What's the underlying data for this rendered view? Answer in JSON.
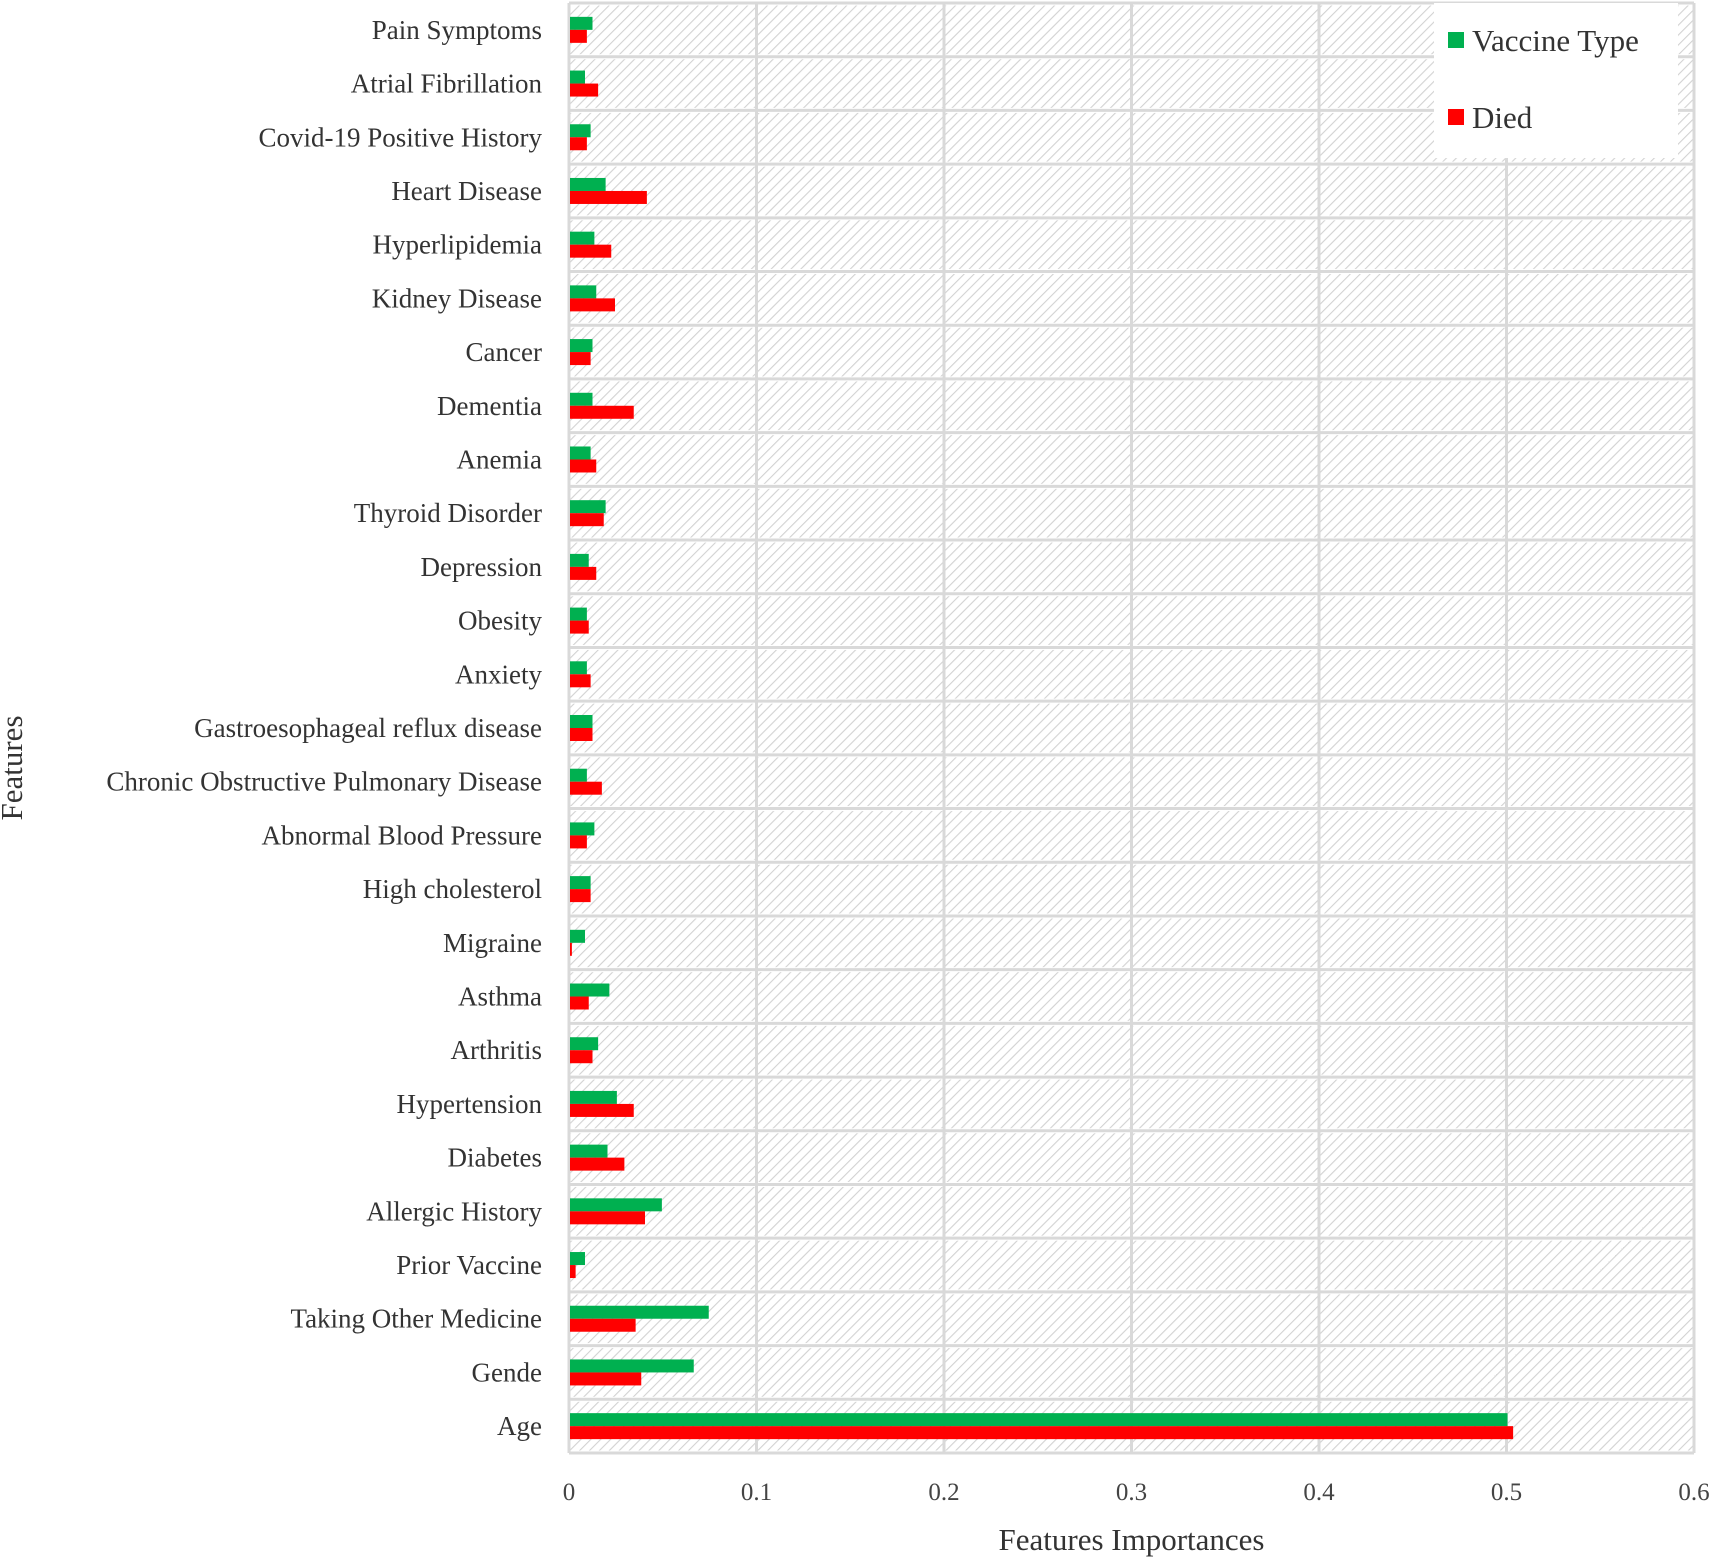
{
  "chart_data": {
    "type": "bar",
    "orientation": "horizontal",
    "xlabel": "Features Importances",
    "ylabel": "Features",
    "xlim": [
      0,
      0.6
    ],
    "xticks": [
      "0",
      "0.1",
      "0.2",
      "0.3",
      "0.4",
      "0.5",
      "0.6"
    ],
    "grid": true,
    "legend_position": "top-right",
    "categories": [
      "Age",
      "Gende",
      "Taking Other Medicine",
      "Prior Vaccine",
      "Allergic History",
      "Diabetes",
      "Hypertension",
      "Arthritis",
      "Asthma",
      "Migraine",
      "High cholesterol",
      "Abnormal Blood Pressure",
      "Chronic Obstructive Pulmonary Disease",
      "Gastroesophageal reflux disease",
      "Anxiety",
      "Obesity",
      "Depression",
      "Thyroid Disorder",
      "Anemia",
      "Dementia",
      "Cancer",
      "Kidney Disease",
      "Hyperlipidemia",
      "Heart Disease",
      "Covid-19 Positive History",
      "Atrial Fibrillation",
      "Pain Symptoms"
    ],
    "series": [
      {
        "name": "Vaccine Type",
        "color": "#00b050",
        "values": [
          0.5,
          0.066,
          0.074,
          0.008,
          0.049,
          0.02,
          0.025,
          0.015,
          0.021,
          0.008,
          0.011,
          0.013,
          0.009,
          0.012,
          0.009,
          0.009,
          0.01,
          0.019,
          0.011,
          0.012,
          0.012,
          0.014,
          0.013,
          0.019,
          0.011,
          0.008,
          0.012
        ]
      },
      {
        "name": "Died",
        "color": "#ff0000",
        "values": [
          0.503,
          0.038,
          0.035,
          0.003,
          0.04,
          0.029,
          0.034,
          0.012,
          0.01,
          0.001,
          0.011,
          0.009,
          0.017,
          0.012,
          0.011,
          0.01,
          0.014,
          0.018,
          0.014,
          0.034,
          0.011,
          0.024,
          0.022,
          0.041,
          0.009,
          0.015,
          0.009
        ]
      }
    ]
  },
  "colors": {
    "vaccine_type": "#00b050",
    "died": "#ff0000",
    "gridline": "#d9d9d9",
    "band_hatch": "#d0d0d0"
  }
}
